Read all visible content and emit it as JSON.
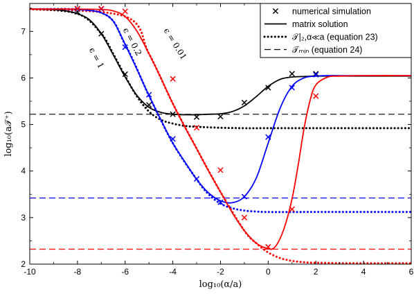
{
  "chart_data": {
    "type": "line",
    "xlabel": "log₁₀(α/a)",
    "ylabel": "log₁₀(a𝒯⁺)",
    "xlim": [
      -10,
      6
    ],
    "ylim": [
      2,
      7.6
    ],
    "xticks": [
      "-10",
      "-8",
      "-6",
      "-4",
      "-2",
      "0",
      "2",
      "4",
      "6"
    ],
    "yticks": [
      "2",
      "3",
      "4",
      "5",
      "6",
      "7"
    ],
    "grid": false,
    "legend_position": "top-right",
    "legend": [
      {
        "marker": "cross",
        "label": "numerical simulation"
      },
      {
        "marker": "solid",
        "label": "matrix solution"
      },
      {
        "marker": "dotted",
        "label": "𝒯|₂,α≪a (equation 23)"
      },
      {
        "marker": "dashed",
        "label": "𝒯ₘᵢₙ      (equation 24)"
      }
    ],
    "series": [
      {
        "name": "ϵ = 1",
        "color": "#000000",
        "matrix_solution": {
          "x": [
            -10,
            -9,
            -8.5,
            -8,
            -7.5,
            -7,
            -6.5,
            -6,
            -5.5,
            -5,
            -4.5,
            -4,
            -3.5,
            -3,
            -2.5,
            -2,
            -1.5,
            -1,
            -0.5,
            0,
            0.5,
            1,
            1.5,
            2,
            3,
            4,
            6
          ],
          "y": [
            7.48,
            7.47,
            7.44,
            7.38,
            7.25,
            6.95,
            6.5,
            6.02,
            5.62,
            5.37,
            5.26,
            5.22,
            5.21,
            5.21,
            5.22,
            5.23,
            5.28,
            5.4,
            5.6,
            5.82,
            5.97,
            6.02,
            6.03,
            6.04,
            6.04,
            6.04,
            6.04
          ]
        },
        "asymptote": {
          "x": [
            -10,
            -8,
            -7,
            -6.5,
            -6,
            -5.5,
            -5,
            -4.5,
            -4,
            -3.5,
            -3,
            -2,
            -1,
            0,
            2,
            6
          ],
          "y": [
            7.48,
            7.38,
            6.95,
            6.52,
            6.04,
            5.6,
            5.28,
            5.1,
            5.02,
            4.97,
            4.95,
            4.93,
            4.92,
            4.92,
            4.92,
            4.92
          ]
        },
        "t_min": 5.22,
        "simulation": {
          "x": [
            -8,
            -7,
            -6,
            -5,
            -4,
            -3,
            -2,
            -1,
            0,
            1,
            2
          ],
          "y": [
            7.42,
            6.95,
            6.08,
            5.42,
            5.22,
            5.16,
            5.17,
            5.47,
            5.79,
            6.09,
            6.09
          ]
        }
      },
      {
        "name": "ϵ = 0.2",
        "color": "#0000ff",
        "matrix_solution": {
          "x": [
            -10,
            -9,
            -8,
            -7.5,
            -7,
            -6.5,
            -6,
            -5.5,
            -5,
            -4.5,
            -4,
            -3.5,
            -3,
            -2.5,
            -2,
            -1.5,
            -1,
            -0.5,
            0,
            0.5,
            1,
            1.5,
            2,
            2.5,
            3,
            4,
            6
          ],
          "y": [
            7.48,
            7.48,
            7.47,
            7.45,
            7.4,
            7.22,
            6.72,
            6.18,
            5.62,
            5.1,
            4.6,
            4.2,
            3.82,
            3.53,
            3.36,
            3.32,
            3.45,
            3.85,
            4.6,
            5.35,
            5.82,
            6.0,
            6.04,
            6.05,
            6.05,
            6.05,
            6.05
          ]
        },
        "asymptote": {
          "x": [
            -10,
            -7,
            -6,
            -5,
            -4,
            -3,
            -2.5,
            -2,
            -1.5,
            -1,
            -0.5,
            0,
            2,
            6
          ],
          "y": [
            7.48,
            7.4,
            6.72,
            5.62,
            4.6,
            3.82,
            3.5,
            3.3,
            3.2,
            3.15,
            3.13,
            3.12,
            3.12,
            3.12
          ]
        },
        "t_min": 3.42,
        "simulation": {
          "x": [
            -8,
            -7,
            -6,
            -5,
            -4,
            -3,
            -2,
            -1,
            0,
            1,
            2
          ],
          "y": [
            7.48,
            7.48,
            6.66,
            5.64,
            4.69,
            3.83,
            3.33,
            3.45,
            4.73,
            5.79,
            6.07
          ]
        }
      },
      {
        "name": "ϵ = 0.01",
        "color": "#ff0000",
        "matrix_solution": {
          "x": [
            -10,
            -8,
            -7,
            -6.5,
            -6,
            -5.5,
            -5,
            -4.5,
            -4,
            -3.5,
            -3,
            -2.5,
            -2,
            -1.5,
            -1,
            -0.5,
            0,
            0.25,
            0.5,
            0.75,
            1,
            1.25,
            1.5,
            1.75,
            2,
            2.5,
            3,
            4,
            6
          ],
          "y": [
            7.48,
            7.48,
            7.47,
            7.44,
            7.32,
            7.0,
            6.52,
            6.0,
            5.45,
            4.95,
            4.48,
            4.0,
            3.55,
            3.1,
            2.72,
            2.45,
            2.33,
            2.35,
            2.55,
            2.9,
            3.4,
            4.1,
            4.9,
            5.5,
            5.85,
            6.02,
            6.04,
            6.05,
            6.05
          ]
        },
        "asymptote": {
          "x": [
            -10,
            -6,
            -5,
            -4,
            -3,
            -2,
            -1,
            -0.5,
            0,
            0.5,
            1,
            1.5,
            2,
            3,
            4,
            6
          ],
          "y": [
            7.48,
            7.32,
            6.52,
            5.45,
            4.48,
            3.55,
            2.72,
            2.45,
            2.25,
            2.13,
            2.07,
            2.04,
            2.03,
            2.02,
            2.02,
            2.02
          ]
        },
        "t_min": 2.32,
        "simulation": {
          "x": [
            -8,
            -7,
            -6,
            -4,
            -3,
            -2,
            -1,
            0,
            1,
            2
          ],
          "y": [
            7.49,
            7.49,
            7.43,
            5.98,
            4.93,
            4.02,
            3.0,
            2.37,
            3.18,
            5.61
          ]
        }
      }
    ],
    "annotations": [
      {
        "text": "ϵ = 1",
        "x": -7.3,
        "y": 6.4,
        "angle": 62
      },
      {
        "text": "ϵ = 0.2",
        "x": -5.8,
        "y": 6.75,
        "angle": 62
      },
      {
        "text": "ϵ = 0.01",
        "x": -4.0,
        "y": 6.7,
        "angle": 58
      }
    ]
  }
}
